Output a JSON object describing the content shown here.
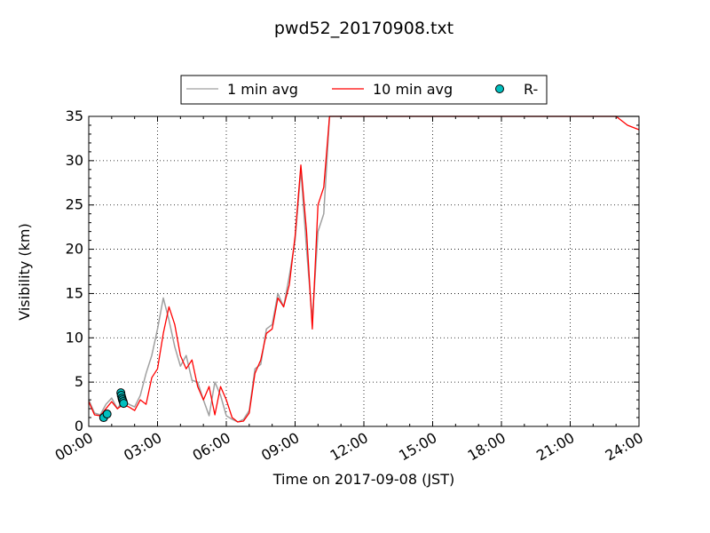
{
  "chart_data": {
    "type": "line",
    "title": "pwd52_20170908.txt",
    "xlabel": "Time on 2017-09-08 (JST)",
    "ylabel": "Visibility (km)",
    "xlim": [
      "00:00",
      "24:00"
    ],
    "ylim": [
      0,
      35
    ],
    "x_ticks": [
      "00:00",
      "03:00",
      "06:00",
      "09:00",
      "12:00",
      "15:00",
      "18:00",
      "21:00",
      "24:00"
    ],
    "y_ticks": [
      "0",
      "5",
      "10",
      "15",
      "20",
      "25",
      "30",
      "35"
    ],
    "grid": true,
    "legend_position": "top-center, above plot",
    "series": [
      {
        "name": "1 min avg",
        "color": "#a0a0a0",
        "x_hours": [
          0,
          0.25,
          0.5,
          0.75,
          1.0,
          1.25,
          1.5,
          1.75,
          2.0,
          2.25,
          2.5,
          2.75,
          3.0,
          3.25,
          3.5,
          3.75,
          4.0,
          4.25,
          4.5,
          4.75,
          5.0,
          5.25,
          5.5,
          5.75,
          6.0,
          6.25,
          6.5,
          6.75,
          7.0,
          7.25,
          7.5,
          7.75,
          8.0,
          8.25,
          8.5,
          8.75,
          9.0,
          9.25,
          9.5,
          9.75,
          10.0,
          10.25,
          10.5,
          10.75,
          11.0,
          12.0,
          13.0,
          14.0,
          15.0,
          16.0,
          17.0,
          18.0,
          19.0,
          20.0,
          21.0,
          22.0,
          23.0,
          23.5,
          24.0
        ],
        "y": [
          3,
          1.5,
          1.3,
          2.5,
          3.2,
          2.0,
          3.0,
          2.5,
          2.2,
          3.5,
          6,
          8,
          11,
          14.5,
          12,
          9,
          6.8,
          8,
          5.2,
          5.0,
          3.0,
          1.2,
          5.0,
          3.5,
          1.2,
          0.8,
          0.5,
          0.8,
          1.8,
          6.5,
          7,
          11,
          11.5,
          15,
          13.5,
          17,
          21,
          29,
          20,
          12,
          22,
          24,
          35,
          35,
          35,
          35,
          35,
          35,
          35,
          35,
          35,
          35,
          35,
          35,
          35,
          35,
          35,
          35,
          35
        ]
      },
      {
        "name": "10 min avg",
        "color": "#ff0000",
        "x_hours": [
          0,
          0.25,
          0.5,
          0.75,
          1.0,
          1.25,
          1.5,
          1.75,
          2.0,
          2.25,
          2.5,
          2.75,
          3.0,
          3.25,
          3.5,
          3.75,
          4.0,
          4.25,
          4.5,
          4.75,
          5.0,
          5.25,
          5.5,
          5.75,
          6.0,
          6.25,
          6.5,
          6.75,
          7.0,
          7.25,
          7.5,
          7.75,
          8.0,
          8.25,
          8.5,
          8.75,
          9.0,
          9.25,
          9.5,
          9.75,
          10.0,
          10.25,
          10.5,
          10.75,
          11.0,
          12.0,
          13.0,
          14.0,
          15.0,
          16.0,
          17.0,
          18.0,
          19.0,
          20.0,
          21.0,
          22.0,
          23.0,
          23.5,
          24.0
        ],
        "y": [
          2.8,
          1.3,
          1.2,
          2.0,
          2.8,
          2.0,
          2.5,
          2.2,
          1.8,
          3.0,
          2.5,
          5.5,
          6.5,
          10.5,
          13.5,
          11.5,
          8.0,
          6.5,
          7.5,
          4.5,
          3.0,
          4.5,
          1.3,
          4.5,
          3.0,
          1.0,
          0.5,
          0.6,
          1.5,
          6,
          7.5,
          10.5,
          11,
          14.5,
          13.5,
          16,
          21.5,
          29.5,
          22,
          11,
          25,
          27,
          35,
          35,
          35,
          35,
          35,
          35,
          35,
          35,
          35,
          35,
          35,
          35,
          35,
          35,
          35,
          34,
          33.5
        ]
      },
      {
        "name": "R-",
        "color": "#00bfbf",
        "marker": "circle",
        "x_hours": [
          0.65,
          0.8,
          1.4,
          1.42,
          1.45,
          1.47,
          1.5,
          1.52
        ],
        "y": [
          1.0,
          1.4,
          3.8,
          3.5,
          3.2,
          3.0,
          2.8,
          2.6
        ]
      }
    ]
  }
}
